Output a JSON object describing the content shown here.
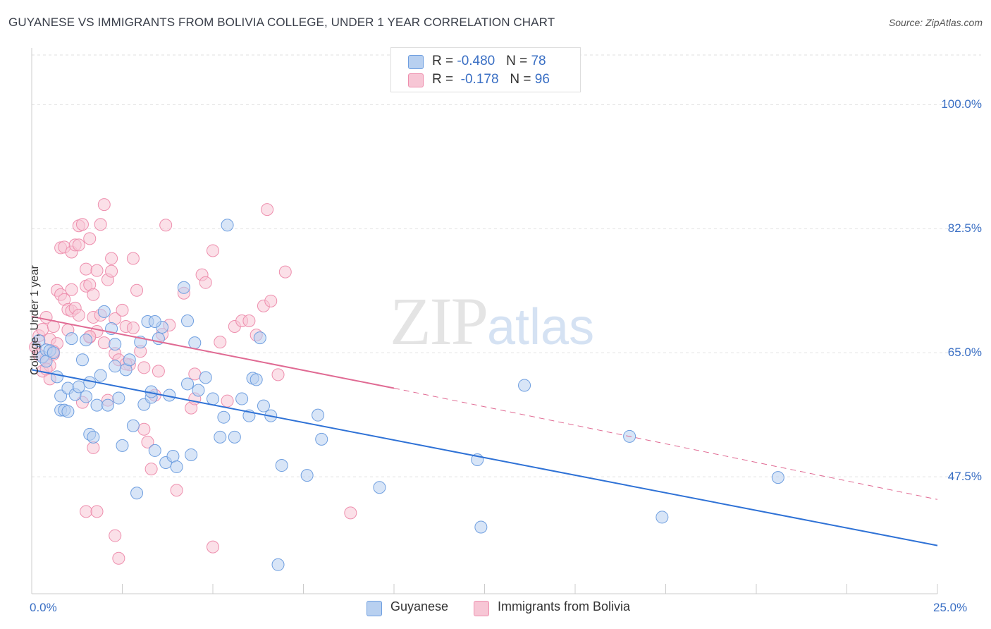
{
  "title": "GUYANESE VS IMMIGRANTS FROM BOLIVIA COLLEGE, UNDER 1 YEAR CORRELATION CHART",
  "source": "Source: ZipAtlas.com",
  "watermark": {
    "zip": "ZIP",
    "atlas": "atlas"
  },
  "legend_top": {
    "rows": [
      {
        "r_label": "R = ",
        "r_value": "-0.480",
        "n_label": "N = ",
        "n_value": "78"
      },
      {
        "r_label": "R = ",
        "r_value": "-0.178",
        "n_label": "N = ",
        "n_value": "96"
      }
    ]
  },
  "colors": {
    "blue_fill": "#b8d0f0",
    "blue_stroke": "#6f9fe0",
    "blue_line": "#2f72d6",
    "pink_fill": "#f7c6d5",
    "pink_stroke": "#ee8fae",
    "pink_line": "#e06a93",
    "tick_label": "#3a6fc4"
  },
  "chart_data": {
    "type": "scatter",
    "title": "GUYANESE VS IMMIGRANTS FROM BOLIVIA COLLEGE, UNDER 1 YEAR CORRELATION CHART",
    "xlabel": "",
    "ylabel": "College, Under 1 year",
    "xlim": [
      0,
      25
    ],
    "ylim": [
      31,
      107
    ],
    "x_tick_labels": [
      "0.0%",
      "25.0%"
    ],
    "y_ticks": [
      47.5,
      65.0,
      82.5,
      100.0
    ],
    "y_tick_labels": [
      "47.5%",
      "65.0%",
      "82.5%",
      "100.0%"
    ],
    "grid": true,
    "legend_position": "bottom",
    "series": [
      {
        "name": "Guyanese",
        "color": "#6f9fe0",
        "trend": {
          "x0": 0,
          "y0": 62.6,
          "x1": 25,
          "y1": 37.8,
          "style": "solid"
        },
        "points": [
          [
            0.2,
            66.7
          ],
          [
            0.3,
            64.4
          ],
          [
            0.4,
            65.4
          ],
          [
            0.4,
            63.8
          ],
          [
            0.5,
            65.3
          ],
          [
            0.6,
            65.0
          ],
          [
            0.7,
            61.6
          ],
          [
            0.8,
            58.9
          ],
          [
            0.8,
            56.9
          ],
          [
            0.9,
            56.9
          ],
          [
            1.0,
            60.0
          ],
          [
            1.0,
            56.7
          ],
          [
            1.1,
            67.0
          ],
          [
            1.2,
            59.1
          ],
          [
            1.3,
            60.2
          ],
          [
            1.4,
            64.0
          ],
          [
            1.5,
            66.8
          ],
          [
            1.5,
            58.8
          ],
          [
            1.6,
            60.8
          ],
          [
            1.6,
            53.5
          ],
          [
            1.7,
            53.1
          ],
          [
            1.8,
            57.6
          ],
          [
            1.9,
            61.8
          ],
          [
            2.0,
            70.8
          ],
          [
            2.1,
            57.6
          ],
          [
            2.2,
            68.4
          ],
          [
            2.3,
            66.2
          ],
          [
            2.3,
            63.1
          ],
          [
            2.4,
            58.6
          ],
          [
            2.5,
            51.9
          ],
          [
            2.6,
            62.6
          ],
          [
            2.7,
            64.0
          ],
          [
            2.8,
            54.7
          ],
          [
            2.9,
            45.2
          ],
          [
            3.0,
            66.5
          ],
          [
            3.1,
            57.7
          ],
          [
            3.2,
            69.4
          ],
          [
            3.3,
            58.7
          ],
          [
            3.3,
            59.5
          ],
          [
            3.4,
            51.2
          ],
          [
            3.5,
            67.0
          ],
          [
            3.6,
            68.6
          ],
          [
            3.7,
            49.5
          ],
          [
            3.8,
            59.0
          ],
          [
            3.9,
            50.4
          ],
          [
            4.0,
            48.9
          ],
          [
            4.2,
            74.2
          ],
          [
            4.3,
            60.6
          ],
          [
            4.3,
            69.5
          ],
          [
            4.4,
            50.6
          ],
          [
            4.5,
            66.4
          ],
          [
            4.6,
            59.7
          ],
          [
            4.8,
            61.5
          ],
          [
            5.0,
            58.5
          ],
          [
            5.2,
            53.1
          ],
          [
            5.3,
            55.9
          ],
          [
            5.4,
            83.0
          ],
          [
            5.6,
            53.1
          ],
          [
            5.8,
            58.5
          ],
          [
            6.0,
            56.1
          ],
          [
            6.1,
            61.4
          ],
          [
            6.2,
            61.2
          ],
          [
            6.3,
            67.1
          ],
          [
            6.4,
            57.5
          ],
          [
            6.6,
            56.1
          ],
          [
            6.8,
            35.1
          ],
          [
            6.9,
            49.1
          ],
          [
            7.6,
            47.7
          ],
          [
            7.9,
            56.2
          ],
          [
            8.0,
            52.8
          ],
          [
            9.6,
            46.0
          ],
          [
            12.3,
            49.9
          ],
          [
            12.4,
            40.4
          ],
          [
            13.6,
            60.4
          ],
          [
            16.5,
            53.2
          ],
          [
            17.4,
            41.8
          ],
          [
            20.6,
            47.4
          ],
          [
            3.4,
            69.4
          ]
        ]
      },
      {
        "name": "Immigrants from Bolivia",
        "color": "#ee8fae",
        "trend": {
          "x0": 0,
          "y0": 70.1,
          "x1": 10,
          "y1": 60.0,
          "dashed_to": {
            "x1": 25,
            "y1": 44.3
          },
          "style": "solid-then-dashed"
        },
        "points": [
          [
            0.1,
            65.8
          ],
          [
            0.2,
            67.4
          ],
          [
            0.2,
            64.7
          ],
          [
            0.3,
            62.4
          ],
          [
            0.3,
            68.3
          ],
          [
            0.4,
            70.0
          ],
          [
            0.4,
            64.2
          ],
          [
            0.5,
            66.9
          ],
          [
            0.5,
            63.2
          ],
          [
            0.5,
            61.3
          ],
          [
            0.6,
            64.8
          ],
          [
            0.6,
            68.7
          ],
          [
            0.7,
            73.8
          ],
          [
            0.7,
            66.3
          ],
          [
            0.8,
            79.8
          ],
          [
            0.8,
            73.2
          ],
          [
            0.9,
            79.9
          ],
          [
            0.9,
            72.5
          ],
          [
            1.0,
            71.1
          ],
          [
            1.0,
            68.2
          ],
          [
            1.1,
            70.9
          ],
          [
            1.1,
            79.2
          ],
          [
            1.1,
            73.9
          ],
          [
            1.2,
            71.3
          ],
          [
            1.2,
            80.2
          ],
          [
            1.3,
            82.9
          ],
          [
            1.3,
            80.2
          ],
          [
            1.3,
            70.3
          ],
          [
            1.4,
            83.1
          ],
          [
            1.5,
            74.4
          ],
          [
            1.5,
            76.8
          ],
          [
            1.6,
            81.1
          ],
          [
            1.6,
            74.6
          ],
          [
            1.6,
            67.2
          ],
          [
            1.7,
            70.0
          ],
          [
            1.7,
            73.2
          ],
          [
            1.8,
            68.0
          ],
          [
            1.8,
            76.6
          ],
          [
            1.9,
            83.1
          ],
          [
            1.9,
            70.3
          ],
          [
            2.0,
            66.4
          ],
          [
            2.0,
            85.9
          ],
          [
            2.1,
            75.3
          ],
          [
            2.2,
            76.5
          ],
          [
            2.2,
            78.3
          ],
          [
            2.3,
            69.8
          ],
          [
            2.3,
            64.9
          ],
          [
            2.4,
            64.0
          ],
          [
            2.5,
            71.0
          ],
          [
            2.6,
            68.7
          ],
          [
            2.7,
            63.3
          ],
          [
            2.8,
            78.3
          ],
          [
            2.9,
            73.8
          ],
          [
            3.0,
            65.2
          ],
          [
            3.1,
            62.9
          ],
          [
            3.2,
            52.4
          ],
          [
            3.3,
            48.6
          ],
          [
            3.4,
            59.0
          ],
          [
            3.5,
            62.4
          ],
          [
            3.6,
            67.6
          ],
          [
            3.7,
            83.0
          ],
          [
            3.8,
            68.9
          ],
          [
            4.0,
            45.6
          ],
          [
            4.2,
            73.4
          ],
          [
            4.4,
            57.2
          ],
          [
            4.5,
            62.0
          ],
          [
            4.7,
            76.0
          ],
          [
            4.8,
            74.9
          ],
          [
            5.0,
            79.4
          ],
          [
            5.0,
            37.6
          ],
          [
            5.2,
            66.5
          ],
          [
            5.4,
            58.2
          ],
          [
            5.6,
            68.7
          ],
          [
            5.8,
            69.5
          ],
          [
            6.0,
            69.5
          ],
          [
            6.2,
            67.5
          ],
          [
            6.4,
            71.6
          ],
          [
            6.5,
            85.2
          ],
          [
            6.6,
            72.3
          ],
          [
            6.8,
            61.9
          ],
          [
            7.0,
            76.4
          ],
          [
            8.8,
            42.4
          ],
          [
            1.5,
            42.6
          ],
          [
            1.8,
            42.6
          ],
          [
            2.3,
            39.2
          ],
          [
            2.4,
            36.0
          ],
          [
            1.6,
            67.3
          ],
          [
            2.6,
            63.4
          ],
          [
            0.4,
            62.7
          ],
          [
            0.6,
            65.2
          ],
          [
            1.4,
            58.0
          ],
          [
            2.1,
            58.3
          ],
          [
            1.7,
            51.6
          ],
          [
            3.1,
            54.2
          ],
          [
            4.5,
            58.5
          ],
          [
            2.8,
            68.5
          ]
        ]
      }
    ]
  },
  "legend_bottom": {
    "items": [
      "Guyanese",
      "Immigrants from Bolivia"
    ]
  }
}
